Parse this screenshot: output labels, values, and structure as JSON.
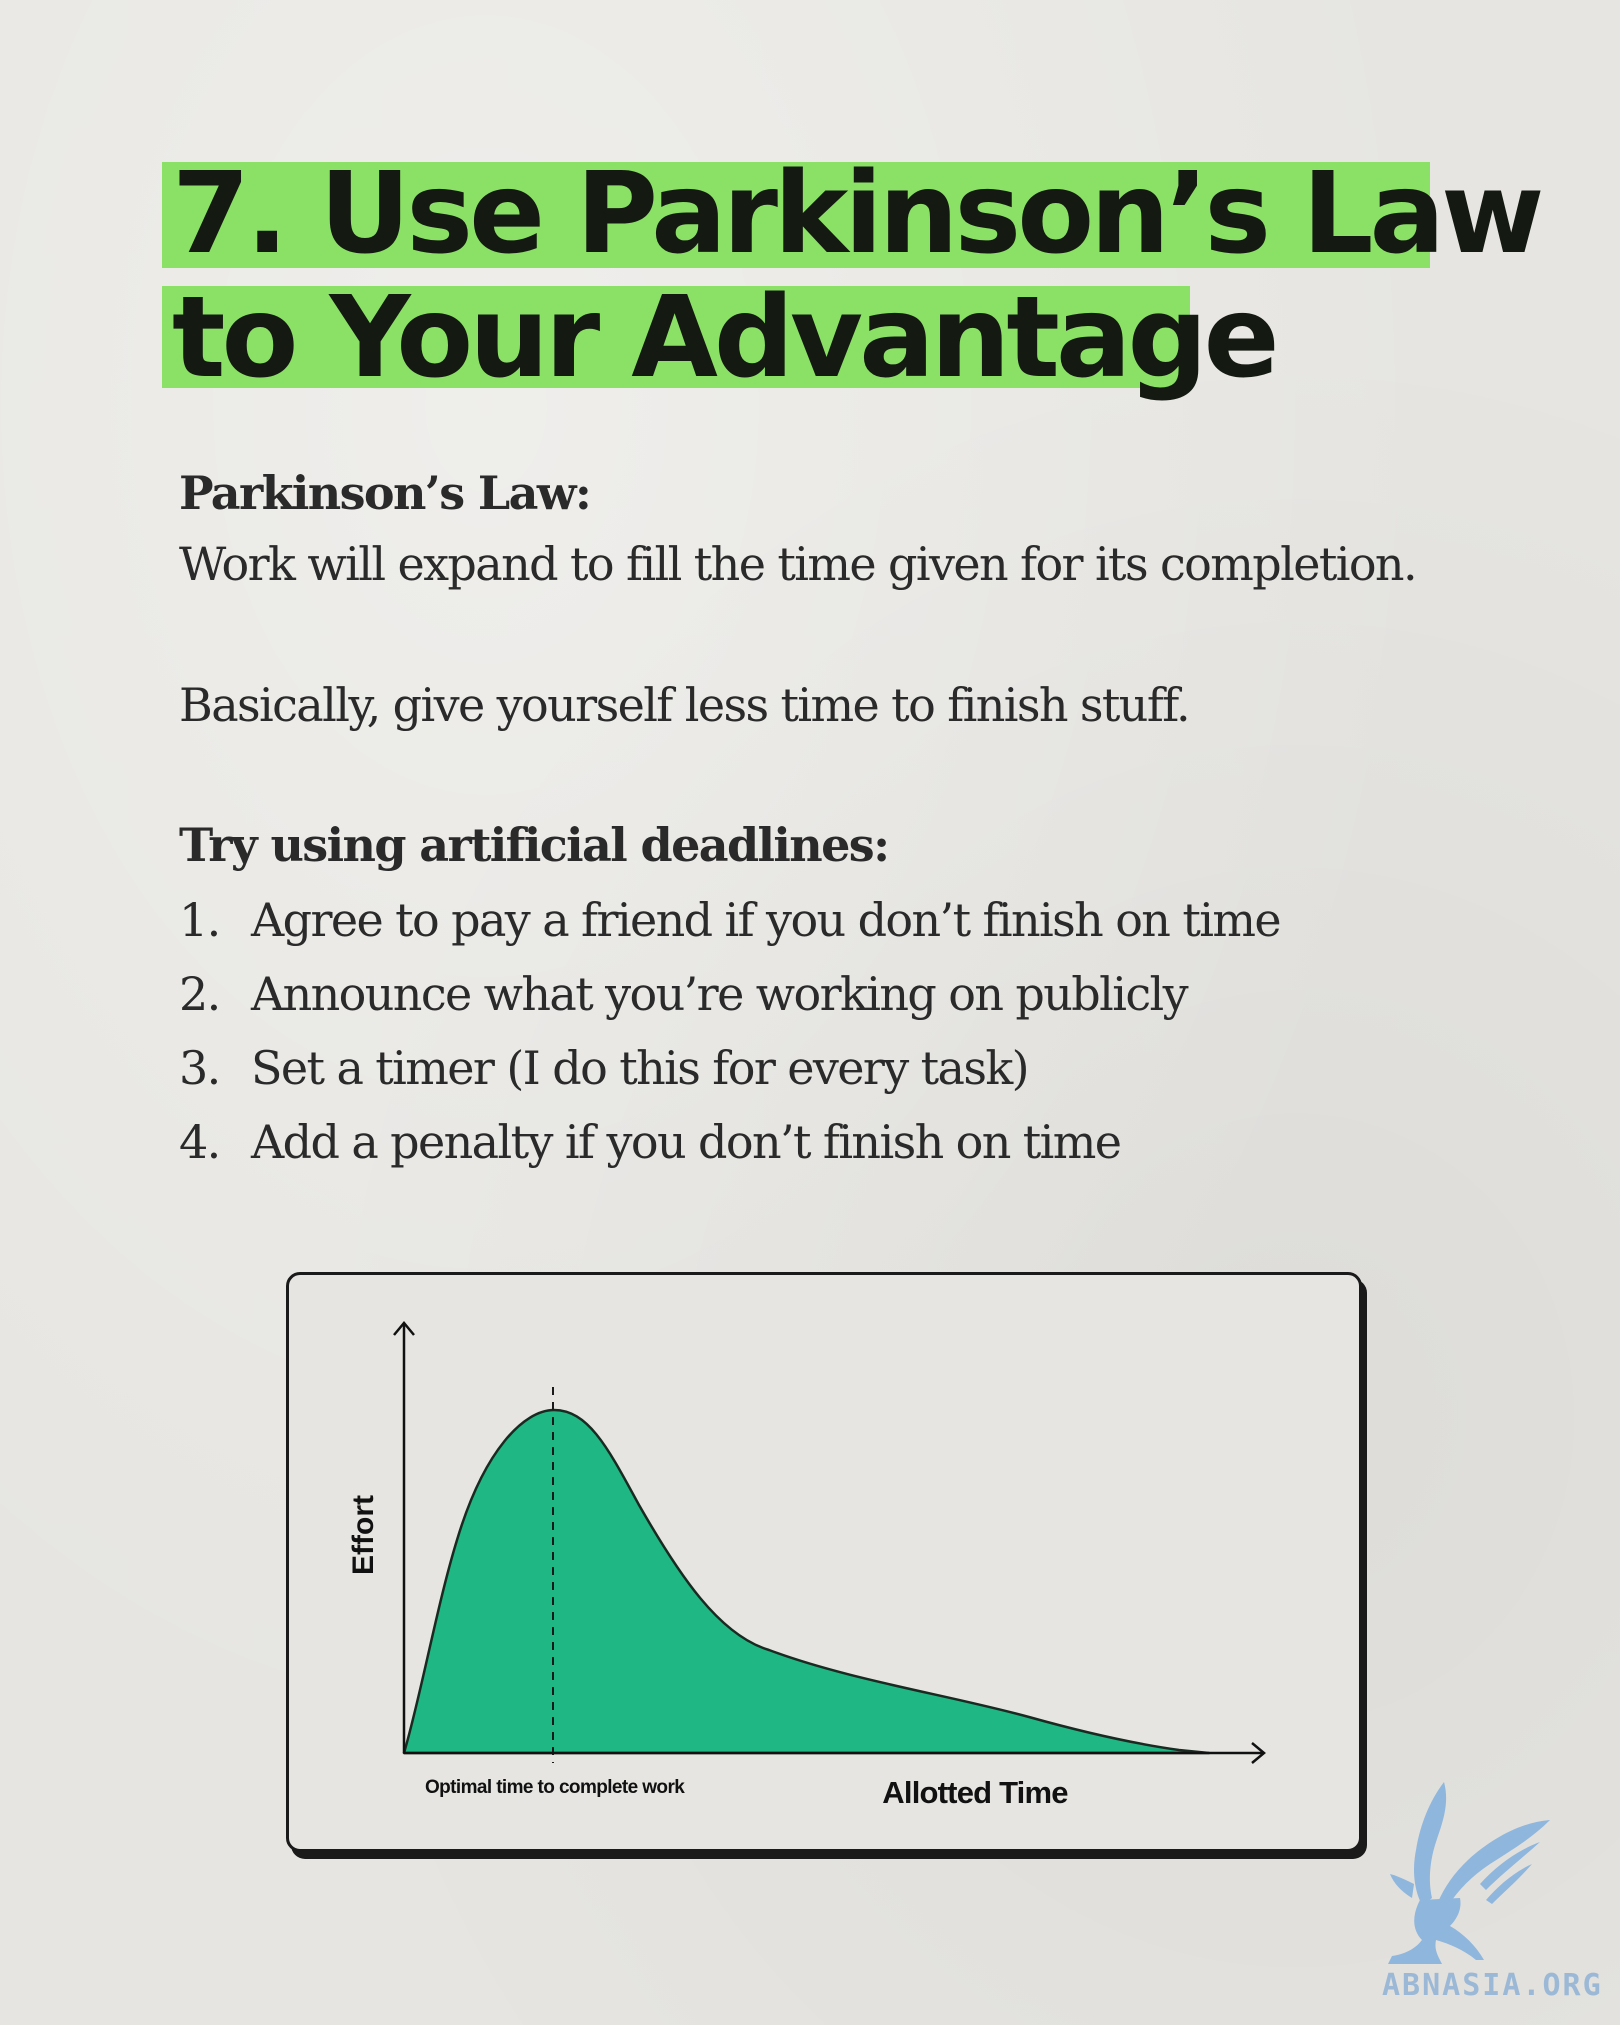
{
  "title": {
    "line1": "7. Use Parkinson’s Law",
    "line2": "to Your Advantage",
    "highlight_color": "#8be066"
  },
  "law": {
    "heading": "Parkinson’s Law:",
    "text": "Work will expand to fill the time given for its completion."
  },
  "summary": "Basically, give yourself less time to finish stuff.",
  "deadlines": {
    "heading": "Try using artificial deadlines:",
    "items": [
      {
        "num": "1.",
        "text": "Agree to pay a friend if you don’t finish on time"
      },
      {
        "num": "2.",
        "text": "Announce what you’re working on publicly"
      },
      {
        "num": "3.",
        "text": "Set a timer (I do this for every task)"
      },
      {
        "num": "4.",
        "text": "Add a penalty if you don’t finish on time"
      }
    ]
  },
  "diagram": {
    "y_label": "Effort",
    "x_label": "Allotted Time",
    "marker_label": "Optimal time to complete work",
    "fill_color": "#1fb784",
    "curve": "right-skewed hump: effort peaks early at the optimal time, then tails off across the allotted time"
  },
  "watermark": {
    "text": "ABNASIA.ORG",
    "icon": "griffin-logo-icon",
    "color": "#8fb6dd"
  }
}
